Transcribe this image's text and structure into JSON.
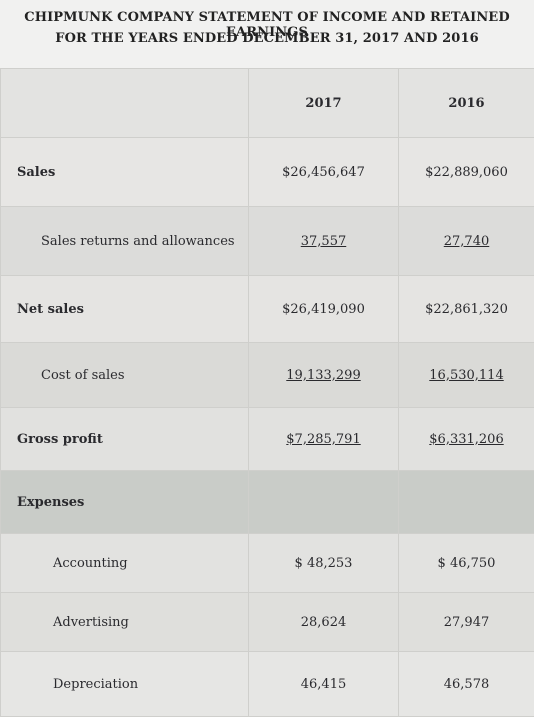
{
  "title": {
    "line1": "CHIPMUNK COMPANY STATEMENT OF INCOME AND RETAINED EARNINGS",
    "line2": "FOR THE YEARS ENDED DECEMBER 31, 2017 AND 2016"
  },
  "columns": {
    "y1": "2017",
    "y2": "2016"
  },
  "rows": [
    {
      "label": "Sales",
      "v2017": "$26,456,647",
      "v2016": "$22,889,060",
      "underline": false,
      "bold": true,
      "indent": 0
    },
    {
      "label": "Sales returns and allowances",
      "v2017": "37,557",
      "v2016": "27,740",
      "underline": true,
      "bold": false,
      "indent": 1
    },
    {
      "label": "Net sales",
      "v2017": "$26,419,090",
      "v2016": "$22,861,320",
      "underline": false,
      "bold": true,
      "indent": 0
    },
    {
      "label": "Cost of sales",
      "v2017": "19,133,299",
      "v2016": "16,530,114",
      "underline": true,
      "bold": false,
      "indent": 1
    },
    {
      "label": "Gross profit",
      "v2017": "$7,285,791",
      "v2016": "$6,331,206",
      "underline": true,
      "bold": true,
      "indent": 0
    },
    {
      "label": "Expenses",
      "v2017": "",
      "v2016": "",
      "underline": false,
      "bold": true,
      "indent": 0
    },
    {
      "label": "Accounting",
      "v2017": "$ 48,253",
      "v2016": "$ 46,750",
      "underline": false,
      "bold": false,
      "indent": 2
    },
    {
      "label": "Advertising",
      "v2017": "28,624",
      "v2016": "27,947",
      "underline": false,
      "bold": false,
      "indent": 2
    },
    {
      "label": "Depreciation",
      "v2017": "46,415",
      "v2016": "46,578",
      "underline": false,
      "bold": false,
      "indent": 2
    }
  ]
}
